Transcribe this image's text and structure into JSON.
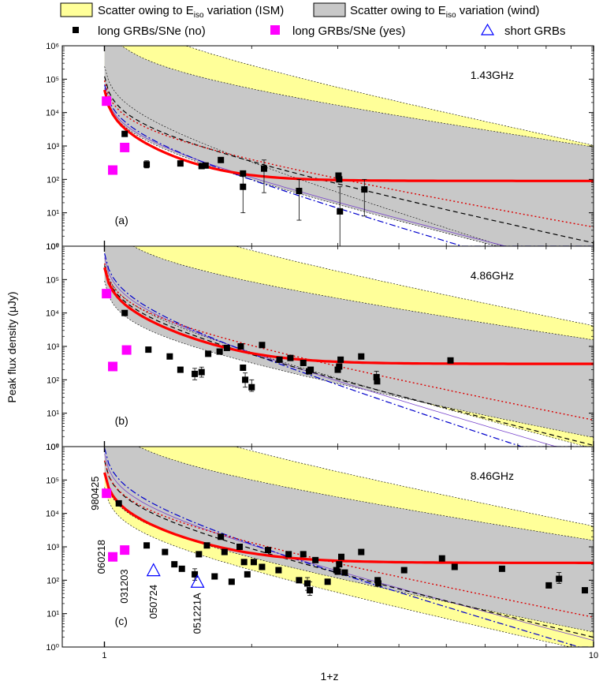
{
  "legend": {
    "ism_band": "Scatter owing to E",
    "ism_sub": "iso",
    "ism_tail": " variation (ISM)",
    "wind_band": "Scatter owing to E",
    "wind_sub": "iso",
    "wind_tail": " variation (wind)",
    "long_no": "long GRBs/SNe (no)",
    "long_yes": "long GRBs/SNe (yes)",
    "short": "short GRBs"
  },
  "colors": {
    "ism_band": "#ffff99",
    "wind_band": "#c8c8c8",
    "long_no": "#000000",
    "long_yes": "#ff00ff",
    "short": "#0000ff",
    "thick_curve": "#ff0000",
    "dotted_red": "#dd0000",
    "dashed_black": "#000000",
    "dashdot_blue": "#0000cc",
    "thin_purple": "#7744cc"
  },
  "chart_data": {
    "type": "scatter",
    "xlabel": "1+z",
    "ylabel": "Peak flux density (μJy)",
    "xscale": "log",
    "yscale": "log",
    "xlim": [
      0.82,
      10
    ],
    "ylim": [
      1,
      1000000
    ],
    "x_ticks": [
      "1",
      "10"
    ],
    "y_ticks": [
      "10⁰",
      "10¹",
      "10²",
      "10³",
      "10⁴",
      "10⁵",
      "10⁶"
    ],
    "panels": [
      {
        "label": "(a)",
        "frequency": "1.43GHz",
        "long_no": [
          {
            "x": 1.1,
            "y": 2300
          },
          {
            "x": 1.22,
            "y": 280,
            "err": [
              220,
              360
            ]
          },
          {
            "x": 1.43,
            "y": 300
          },
          {
            "x": 1.58,
            "y": 250
          },
          {
            "x": 1.61,
            "y": 260
          },
          {
            "x": 1.73,
            "y": 380
          },
          {
            "x": 1.92,
            "y": 150
          },
          {
            "x": 1.92,
            "y": 60,
            "err": [
              10,
              180
            ]
          },
          {
            "x": 2.12,
            "y": 210,
            "err": [
              40,
              380
            ]
          },
          {
            "x": 2.5,
            "y": 45,
            "err": [
              6,
              100
            ]
          },
          {
            "x": 3.01,
            "y": 130
          },
          {
            "x": 3.02,
            "y": 100
          },
          {
            "x": 3.03,
            "y": 11,
            "err": [
              1,
              60
            ]
          },
          {
            "x": 3.4,
            "y": 50,
            "err": [
              8,
              100
            ]
          }
        ],
        "long_yes": [
          {
            "x": 1.01,
            "y": 22000
          },
          {
            "x": 1.04,
            "y": 190
          },
          {
            "x": 1.1,
            "y": 900
          }
        ],
        "short": []
      },
      {
        "label": "(b)",
        "frequency": "4.86GHz",
        "long_no": [
          {
            "x": 1.1,
            "y": 10000
          },
          {
            "x": 1.23,
            "y": 800
          },
          {
            "x": 1.36,
            "y": 500
          },
          {
            "x": 1.43,
            "y": 200
          },
          {
            "x": 1.53,
            "y": 150,
            "err": [
              100,
              220
            ]
          },
          {
            "x": 1.58,
            "y": 170,
            "err": [
              120,
              240
            ]
          },
          {
            "x": 1.63,
            "y": 600
          },
          {
            "x": 1.72,
            "y": 700
          },
          {
            "x": 1.78,
            "y": 900
          },
          {
            "x": 1.9,
            "y": 1000
          },
          {
            "x": 1.92,
            "y": 230
          },
          {
            "x": 1.94,
            "y": 100,
            "err": [
              60,
              160
            ]
          },
          {
            "x": 2.0,
            "y": 60,
            "err": [
              45,
              100
            ]
          },
          {
            "x": 2.1,
            "y": 1100
          },
          {
            "x": 2.28,
            "y": 400
          },
          {
            "x": 2.4,
            "y": 450
          },
          {
            "x": 2.55,
            "y": 320
          },
          {
            "x": 2.62,
            "y": 180
          },
          {
            "x": 2.64,
            "y": 200
          },
          {
            "x": 3.0,
            "y": 200
          },
          {
            "x": 3.02,
            "y": 250
          },
          {
            "x": 3.04,
            "y": 400
          },
          {
            "x": 3.35,
            "y": 500
          },
          {
            "x": 3.6,
            "y": 120,
            "err": [
              80,
              180
            ]
          },
          {
            "x": 3.61,
            "y": 90
          },
          {
            "x": 5.1,
            "y": 380
          }
        ],
        "long_yes": [
          {
            "x": 1.01,
            "y": 38000
          },
          {
            "x": 1.04,
            "y": 250
          },
          {
            "x": 1.11,
            "y": 780
          }
        ],
        "short": []
      },
      {
        "label": "(c)",
        "frequency": "8.46GHz",
        "long_no": [
          {
            "x": 1.07,
            "y": 20000
          },
          {
            "x": 1.22,
            "y": 1100
          },
          {
            "x": 1.33,
            "y": 700
          },
          {
            "x": 1.39,
            "y": 300
          },
          {
            "x": 1.44,
            "y": 220
          },
          {
            "x": 1.53,
            "y": 150,
            "err": [
              100,
              220
            ]
          },
          {
            "x": 1.56,
            "y": 600
          },
          {
            "x": 1.62,
            "y": 1100
          },
          {
            "x": 1.68,
            "y": 130
          },
          {
            "x": 1.73,
            "y": 2000
          },
          {
            "x": 1.76,
            "y": 700
          },
          {
            "x": 1.82,
            "y": 90
          },
          {
            "x": 1.89,
            "y": 1000
          },
          {
            "x": 1.93,
            "y": 350
          },
          {
            "x": 1.96,
            "y": 150
          },
          {
            "x": 2.02,
            "y": 350
          },
          {
            "x": 2.1,
            "y": 250
          },
          {
            "x": 2.16,
            "y": 800
          },
          {
            "x": 2.27,
            "y": 200
          },
          {
            "x": 2.38,
            "y": 600
          },
          {
            "x": 2.5,
            "y": 100
          },
          {
            "x": 2.55,
            "y": 600
          },
          {
            "x": 2.6,
            "y": 80,
            "err": [
              50,
              120
            ]
          },
          {
            "x": 2.63,
            "y": 50,
            "err": [
              35,
              90
            ]
          },
          {
            "x": 2.7,
            "y": 400
          },
          {
            "x": 2.86,
            "y": 90
          },
          {
            "x": 2.98,
            "y": 200
          },
          {
            "x": 3.0,
            "y": 180
          },
          {
            "x": 3.02,
            "y": 300
          },
          {
            "x": 3.05,
            "y": 500
          },
          {
            "x": 3.1,
            "y": 170
          },
          {
            "x": 3.35,
            "y": 700
          },
          {
            "x": 3.62,
            "y": 100
          },
          {
            "x": 3.63,
            "y": 80
          },
          {
            "x": 4.1,
            "y": 200
          },
          {
            "x": 4.9,
            "y": 450
          },
          {
            "x": 5.2,
            "y": 250
          },
          {
            "x": 6.5,
            "y": 220
          },
          {
            "x": 8.1,
            "y": 70
          },
          {
            "x": 8.5,
            "y": 110,
            "err": [
              80,
              170
            ]
          },
          {
            "x": 9.6,
            "y": 50
          }
        ],
        "long_yes": [
          {
            "x": 1.01,
            "y": 40000
          },
          {
            "x": 1.04,
            "y": 500
          },
          {
            "x": 1.1,
            "y": 800
          }
        ],
        "short": [
          {
            "x": 1.26,
            "y": 200
          },
          {
            "x": 1.55,
            "y": 90
          }
        ],
        "annotations": [
          "980425",
          "060218",
          "031203",
          "050724",
          "051221A"
        ]
      }
    ]
  }
}
